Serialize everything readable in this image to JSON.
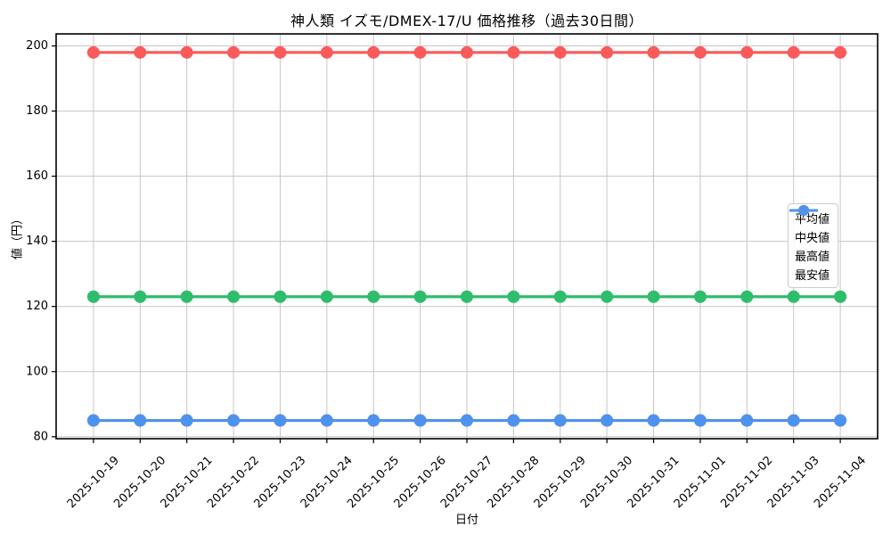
{
  "chart_data": {
    "type": "line",
    "title": "神人類 イズモ/DMEX-17/U 価格推移（過去30日間）",
    "xlabel": "日付",
    "ylabel": "値（円）",
    "categories": [
      "2025-10-19",
      "2025-10-20",
      "2025-10-21",
      "2025-10-22",
      "2025-10-23",
      "2025-10-24",
      "2025-10-25",
      "2025-10-26",
      "2025-10-27",
      "2025-10-28",
      "2025-10-29",
      "2025-10-30",
      "2025-10-31",
      "2025-11-01",
      "2025-11-02",
      "2025-11-03",
      "2025-11-04"
    ],
    "series": [
      {
        "id": "mean",
        "name": "平均値",
        "color": "#2ebd6b",
        "values": [
          123,
          123,
          123,
          123,
          123,
          123,
          123,
          123,
          123,
          123,
          123,
          123,
          123,
          123,
          123,
          123,
          123
        ]
      },
      {
        "id": "median",
        "name": "中央値",
        "color": "#ffa408",
        "values": [
          85,
          85,
          85,
          85,
          85,
          85,
          85,
          85,
          85,
          85,
          85,
          85,
          85,
          85,
          85,
          85,
          85
        ]
      },
      {
        "id": "max",
        "name": "最高値",
        "color": "#fa5a5a",
        "values": [
          198,
          198,
          198,
          198,
          198,
          198,
          198,
          198,
          198,
          198,
          198,
          198,
          198,
          198,
          198,
          198,
          198
        ]
      },
      {
        "id": "min",
        "name": "最安値",
        "color": "#4e92f0",
        "values": [
          85,
          85,
          85,
          85,
          85,
          85,
          85,
          85,
          85,
          85,
          85,
          85,
          85,
          85,
          85,
          85,
          85
        ]
      }
    ],
    "yticks": [
      80,
      100,
      120,
      140,
      160,
      180,
      200
    ],
    "ylim": [
      79.4,
      203.7
    ],
    "x_tick_rotation": 45,
    "grid": true,
    "grid_color": "#c6c6c6",
    "axis_color": "#000000",
    "legend_position": "center-right",
    "marker": "circle",
    "marker_radius": 7,
    "line_width": 3.2
  }
}
